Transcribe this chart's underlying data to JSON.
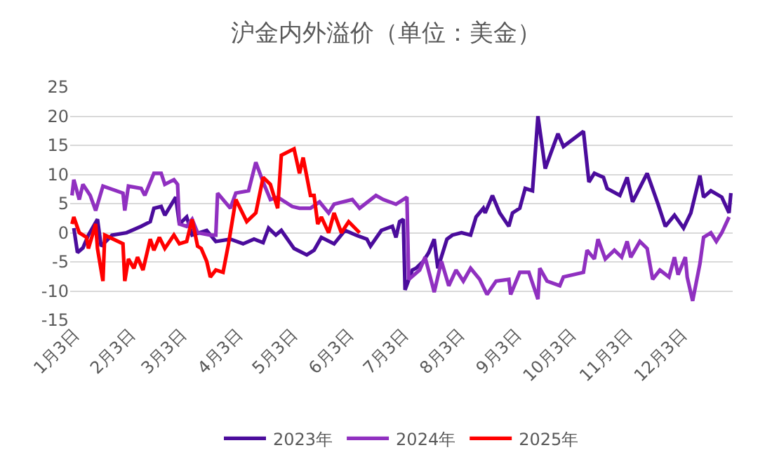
{
  "chart_data": {
    "type": "line",
    "title": "沪金内外溢价（单位：美金）",
    "xlim": [
      "--01-01",
      "--12-31"
    ],
    "xticks": [
      {
        "value": "--01-03",
        "label": "1月3日"
      },
      {
        "value": "--02-03",
        "label": "2月3日"
      },
      {
        "value": "--03-03",
        "label": "3月3日"
      },
      {
        "value": "--04-03",
        "label": "4月3日"
      },
      {
        "value": "--05-03",
        "label": "5月3日"
      },
      {
        "value": "--06-03",
        "label": "6月3日"
      },
      {
        "value": "--07-03",
        "label": "7月3日"
      },
      {
        "value": "--08-03",
        "label": "8月3日"
      },
      {
        "value": "--09-03",
        "label": "9月3日"
      },
      {
        "value": "--10-03",
        "label": "10月3日"
      },
      {
        "value": "--11-03",
        "label": "11月3日"
      },
      {
        "value": "--12-03",
        "label": "12月3日"
      }
    ],
    "ylim": [
      -15,
      25
    ],
    "yticks": [
      -15,
      -10,
      -5,
      0,
      5,
      10,
      15,
      20,
      25
    ],
    "grid": "y",
    "legend": "bottom",
    "marker": "none",
    "line_style": "solid",
    "series": [
      {
        "name": "2023年",
        "color": "#4b0c9c",
        "x": [
          "--01-03",
          "--01-05",
          "--01-08",
          "--01-11",
          "--01-16",
          "--01-18",
          "--01-24",
          "--02-01",
          "--02-09",
          "--02-14",
          "--02-16",
          "--02-20",
          "--02-22",
          "--02-28",
          "--03-02",
          "--03-06",
          "--03-09",
          "--03-17",
          "--03-22",
          "--03-30",
          "--04-06",
          "--04-12",
          "--04-17",
          "--04-20",
          "--04-24",
          "--04-27",
          "--05-04",
          "--05-11",
          "--05-15",
          "--05-19",
          "--05-26",
          "--06-01",
          "--06-07",
          "--06-13",
          "--06-15",
          "--06-21",
          "--06-27",
          "--06-29",
          "--07-01",
          "--07-03",
          "--07-04",
          "--07-08",
          "--07-10",
          "--07-14",
          "--07-17",
          "--07-20",
          "--07-22",
          "--07-27",
          "--07-30",
          "--08-04",
          "--08-09",
          "--08-12",
          "--08-16",
          "--08-17",
          "--08-21",
          "--08-25",
          "--08-30",
          "--09-01",
          "--09-05",
          "--09-08",
          "--09-12",
          "--09-15",
          "--09-19",
          "--09-22",
          "--09-26",
          "--09-29",
          "--10-10",
          "--10-13",
          "--10-16",
          "--10-21",
          "--10-23",
          "--10-30",
          "--11-03",
          "--11-06",
          "--11-14",
          "--11-20",
          "--11-24",
          "--11-29",
          "--12-04",
          "--12-08",
          "--12-13",
          "--12-15",
          "--12-19",
          "--12-25",
          "--12-29",
          "--12-30"
        ],
        "values": [
          0.8,
          -3.4,
          -2.6,
          -0.4,
          2.3,
          -2.3,
          -0.4,
          0,
          1.1,
          1.9,
          4.2,
          4.5,
          3,
          6.1,
          1.5,
          2.7,
          -0.4,
          0.4,
          -1.5,
          -1.1,
          -1.9,
          -1.1,
          -1.7,
          0.8,
          -0.4,
          0.4,
          -2.7,
          -3.8,
          -3,
          -0.8,
          -1.9,
          0.4,
          -0.4,
          -1.1,
          -2.3,
          0.4,
          1.1,
          -0.8,
          1.9,
          2.3,
          -9.8,
          -6.4,
          -6.1,
          -4.9,
          -3.4,
          -1.1,
          -6.1,
          -1.1,
          -0.4,
          0,
          -0.4,
          2.7,
          4.2,
          3.4,
          6.4,
          3.4,
          1.1,
          3.4,
          4.2,
          7.6,
          7.2,
          20,
          11,
          13.6,
          17,
          14.8,
          17.4,
          8.7,
          10.2,
          9.5,
          7.6,
          6.4,
          9.5,
          5.3,
          10.2,
          4.9,
          1.1,
          3,
          0.8,
          3.4,
          9.8,
          6.1,
          7.2,
          6.1,
          3.4,
          6.8
        ]
      },
      {
        "name": "2024年",
        "color": "#9030c0",
        "x": [
          "--01-02",
          "--01-03",
          "--01-06",
          "--01-08",
          "--01-12",
          "--01-15",
          "--01-19",
          "--01-30",
          "--01-31",
          "--02-02",
          "--02-09",
          "--02-11",
          "--02-16",
          "--02-20",
          "--02-22",
          "--02-27",
          "--03-01",
          "--03-02",
          "--03-06",
          "--03-09",
          "--03-12",
          "--03-19",
          "--03-22",
          "--03-23",
          "--03-30",
          "--04-02",
          "--04-09",
          "--04-13",
          "--04-17",
          "--04-21",
          "--04-25",
          "--05-03",
          "--05-07",
          "--05-13",
          "--05-18",
          "--05-23",
          "--05-26",
          "--06-05",
          "--06-09",
          "--06-18",
          "--06-22",
          "--06-29",
          "--07-05",
          "--07-06",
          "--07-12",
          "--07-15",
          "--07-20",
          "--07-24",
          "--07-28",
          "--08-01",
          "--08-05",
          "--08-09",
          "--08-14",
          "--08-18",
          "--08-23",
          "--08-30",
          "--08-31",
          "--09-05",
          "--09-10",
          "--09-15",
          "--09-16",
          "--09-20",
          "--09-27",
          "--09-29",
          "--10-10",
          "--10-12",
          "--10-16",
          "--10-18",
          "--10-22",
          "--10-27",
          "--10-31",
          "--11-03",
          "--11-05",
          "--11-10",
          "--11-14",
          "--11-17",
          "--11-21",
          "--11-26",
          "--11-29",
          "--12-01",
          "--12-05",
          "--12-06",
          "--12-09",
          "--12-13",
          "--12-15",
          "--12-19",
          "--12-22",
          "--12-25",
          "--12-29"
        ],
        "values": [
          6.4,
          9.1,
          5.7,
          8.3,
          6.4,
          3.8,
          8,
          6.8,
          3.8,
          8,
          7.6,
          6.4,
          10.2,
          10.2,
          8.3,
          9.1,
          8.3,
          1.5,
          1.1,
          2.3,
          0,
          -0.4,
          -0.4,
          6.8,
          4.2,
          6.8,
          7.2,
          12.1,
          8.7,
          5.7,
          6.1,
          4.5,
          4.2,
          4.2,
          5.3,
          3.4,
          4.9,
          5.7,
          4.2,
          6.4,
          5.7,
          4.9,
          6.1,
          -8,
          -6.4,
          -4.2,
          -10.2,
          -4.9,
          -9.1,
          -6.4,
          -8.3,
          -6.1,
          -8,
          -10.6,
          -8.3,
          -8,
          -10.6,
          -6.8,
          -6.8,
          -11.4,
          -6.1,
          -8.3,
          -9.1,
          -7.6,
          -6.8,
          -3,
          -4.5,
          -1.1,
          -4.5,
          -3,
          -4.2,
          -1.5,
          -4.2,
          -1.5,
          -2.7,
          -8,
          -6.4,
          -7.6,
          -4.2,
          -7.2,
          -4.2,
          -7.6,
          -11.7,
          -5.3,
          -0.8,
          0,
          -1.5,
          0,
          2.7
        ]
      },
      {
        "name": "2025年",
        "color": "#ff0000",
        "x": [
          "--01-02",
          "--01-03",
          "--01-06",
          "--01-10",
          "--01-11",
          "--01-14",
          "--01-15",
          "--01-16",
          "--01-19",
          "--01-20",
          "--01-30",
          "--01-31",
          "--02-02",
          "--02-05",
          "--02-07",
          "--02-10",
          "--02-14",
          "--02-16",
          "--02-19",
          "--02-22",
          "--02-27",
          "--03-02",
          "--03-06",
          "--03-09",
          "--03-12",
          "--03-14",
          "--03-17",
          "--03-19",
          "--03-22",
          "--03-26",
          "--03-29",
          "--04-02",
          "--04-08",
          "--04-13",
          "--04-17",
          "--04-21",
          "--04-25",
          "--04-27",
          "--05-04",
          "--05-07",
          "--05-09",
          "--05-13",
          "--05-15",
          "--05-17",
          "--05-19",
          "--05-23",
          "--05-26",
          "--05-30",
          "--06-03",
          "--06-09"
        ],
        "values": [
          1.5,
          2.7,
          0,
          -0.8,
          -2.7,
          0.4,
          1.5,
          -2.7,
          -8.3,
          -0.4,
          -1.9,
          -8.3,
          -4.5,
          -6.1,
          -4.2,
          -6.4,
          -1.1,
          -3,
          -0.8,
          -2.7,
          -0.4,
          -1.9,
          -1.5,
          2.3,
          -2.3,
          -2.7,
          -4.9,
          -7.6,
          -6.4,
          -6.8,
          -1.9,
          5.7,
          1.9,
          3.4,
          9.5,
          8.3,
          4.2,
          13.3,
          14.4,
          10.2,
          12.9,
          6.4,
          6.4,
          1.5,
          2.7,
          0,
          3.4,
          0,
          1.9,
          0
        ]
      }
    ]
  }
}
